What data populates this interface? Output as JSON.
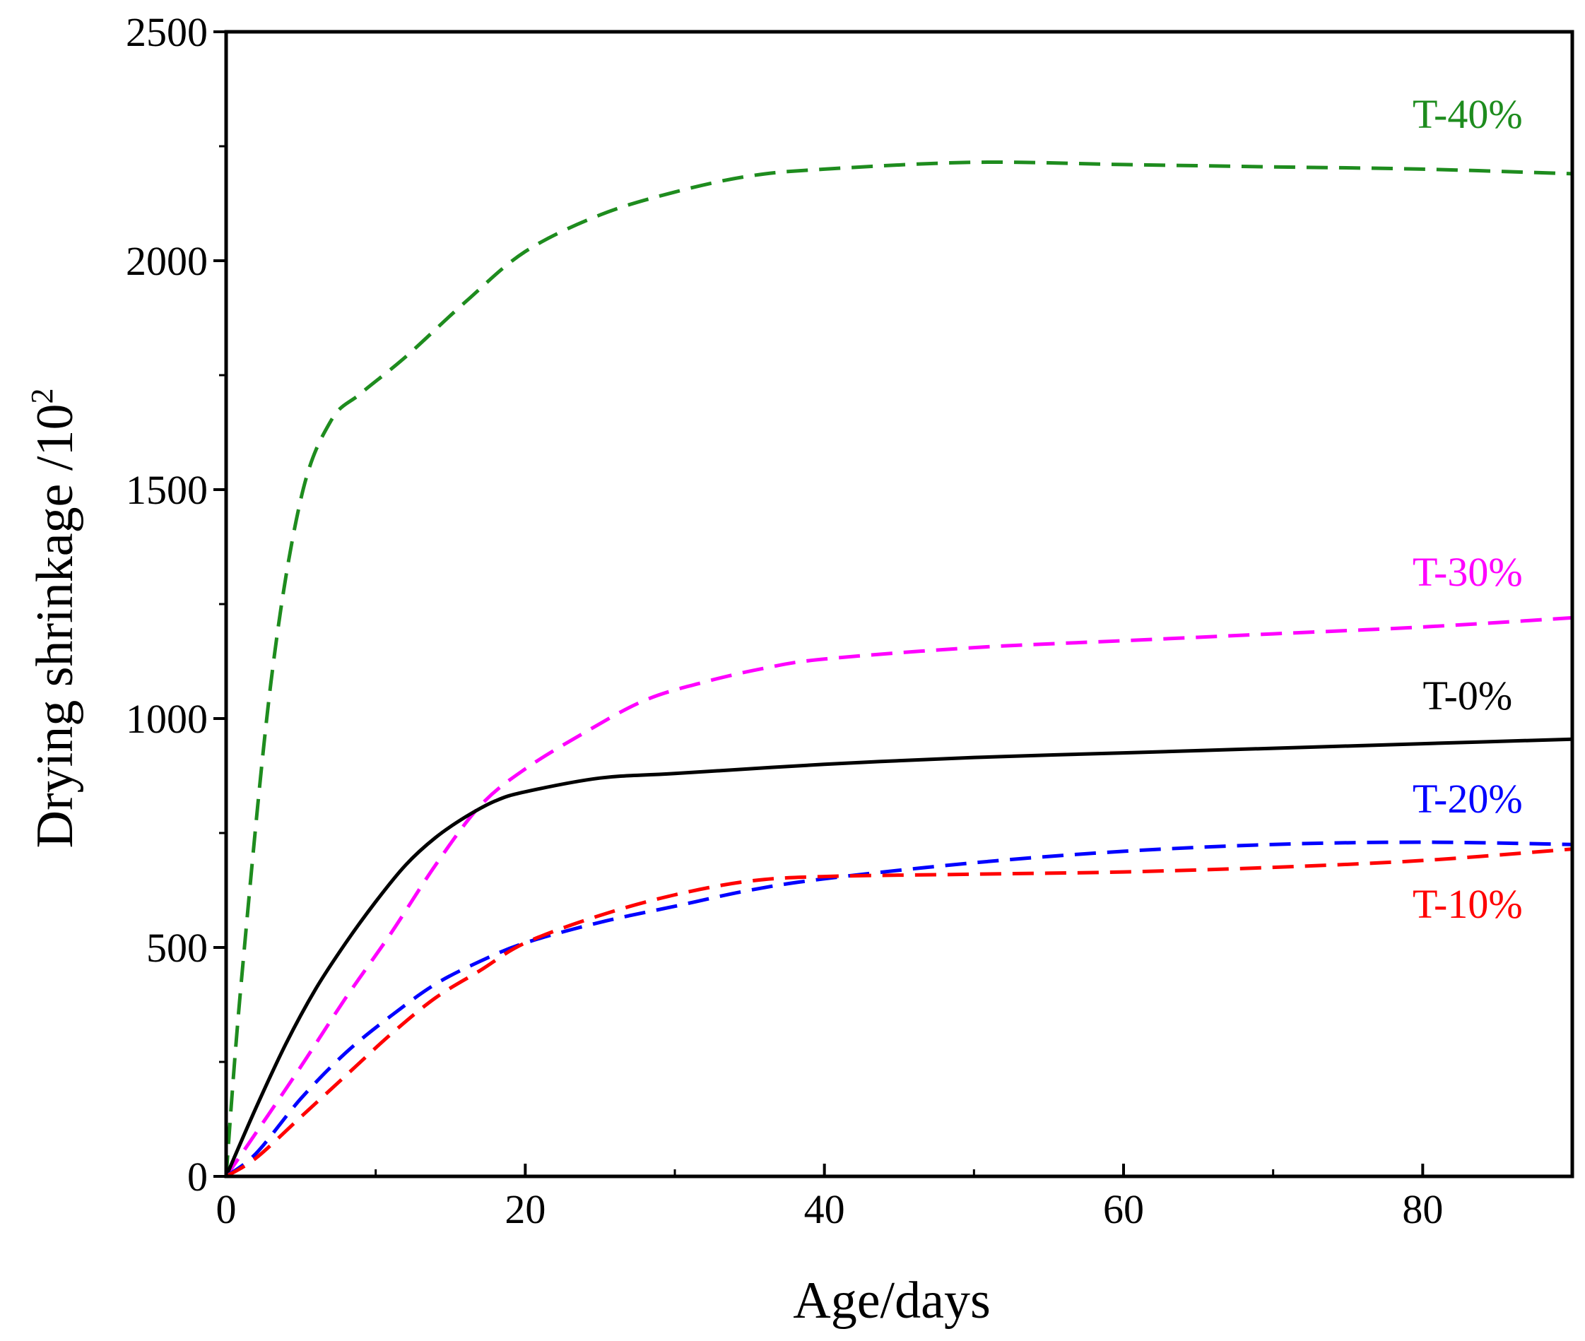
{
  "chart_data": {
    "type": "line",
    "title": "",
    "xlabel": "Age/days",
    "ylabel": "Drying shrinkage /10",
    "ylabel_superscript": "2",
    "xlim": [
      0,
      90
    ],
    "ylim": [
      0,
      2500
    ],
    "xticks": [
      0,
      20,
      40,
      60,
      80
    ],
    "xminor": [
      10,
      30,
      50,
      70
    ],
    "yticks": [
      0,
      500,
      1000,
      1500,
      2000,
      2500
    ],
    "yminor": [
      250,
      750,
      1250,
      1750,
      2250
    ],
    "grid": false,
    "series": [
      {
        "name": "T-40%",
        "color": "#1e8c1e",
        "style": "dashed",
        "label_at": [
          83,
          2290
        ],
        "x": [
          0,
          1,
          3,
          5,
          7,
          9,
          12,
          16,
          20,
          25,
          30,
          35,
          40,
          50,
          60,
          70,
          80,
          90
        ],
        "y": [
          0,
          420,
          1080,
          1480,
          1650,
          1710,
          1790,
          1910,
          2020,
          2100,
          2150,
          2185,
          2200,
          2215,
          2210,
          2205,
          2200,
          2190
        ]
      },
      {
        "name": "T-30%",
        "color": "#ff00ff",
        "style": "dashed",
        "label_at": [
          83,
          1290
        ],
        "x": [
          0,
          2,
          5,
          8,
          11,
          14,
          17,
          20,
          24,
          28,
          32,
          36,
          40,
          50,
          60,
          70,
          80,
          90
        ],
        "y": [
          0,
          95,
          240,
          390,
          530,
          680,
          810,
          890,
          970,
          1040,
          1080,
          1110,
          1130,
          1155,
          1170,
          1185,
          1200,
          1220
        ]
      },
      {
        "name": "T-0%",
        "color": "#000000",
        "style": "solid",
        "label_at": [
          83,
          1020
        ],
        "x": [
          0,
          2,
          4,
          6,
          8,
          10,
          12,
          14,
          16,
          18,
          20,
          25,
          30,
          40,
          50,
          60,
          70,
          80,
          90
        ],
        "y": [
          0,
          150,
          290,
          410,
          510,
          600,
          680,
          740,
          785,
          820,
          840,
          870,
          880,
          900,
          915,
          925,
          935,
          945,
          955
        ]
      },
      {
        "name": "T-20%",
        "color": "#0000ff",
        "style": "dashed",
        "label_at": [
          83,
          795
        ],
        "x": [
          0,
          2,
          5,
          8,
          11,
          14,
          17,
          20,
          25,
          30,
          35,
          40,
          50,
          60,
          70,
          80,
          90
        ],
        "y": [
          0,
          50,
          170,
          270,
          350,
          420,
          470,
          510,
          555,
          590,
          625,
          650,
          685,
          710,
          725,
          730,
          725
        ]
      },
      {
        "name": "T-10%",
        "color": "#ff0000",
        "style": "dashed",
        "label_at": [
          83,
          565
        ],
        "x": [
          0,
          2,
          5,
          8,
          11,
          14,
          17,
          20,
          25,
          30,
          35,
          40,
          50,
          60,
          70,
          80,
          90
        ],
        "y": [
          0,
          40,
          130,
          220,
          310,
          390,
          450,
          510,
          570,
          615,
          645,
          655,
          660,
          665,
          675,
          690,
          715
        ]
      }
    ]
  }
}
